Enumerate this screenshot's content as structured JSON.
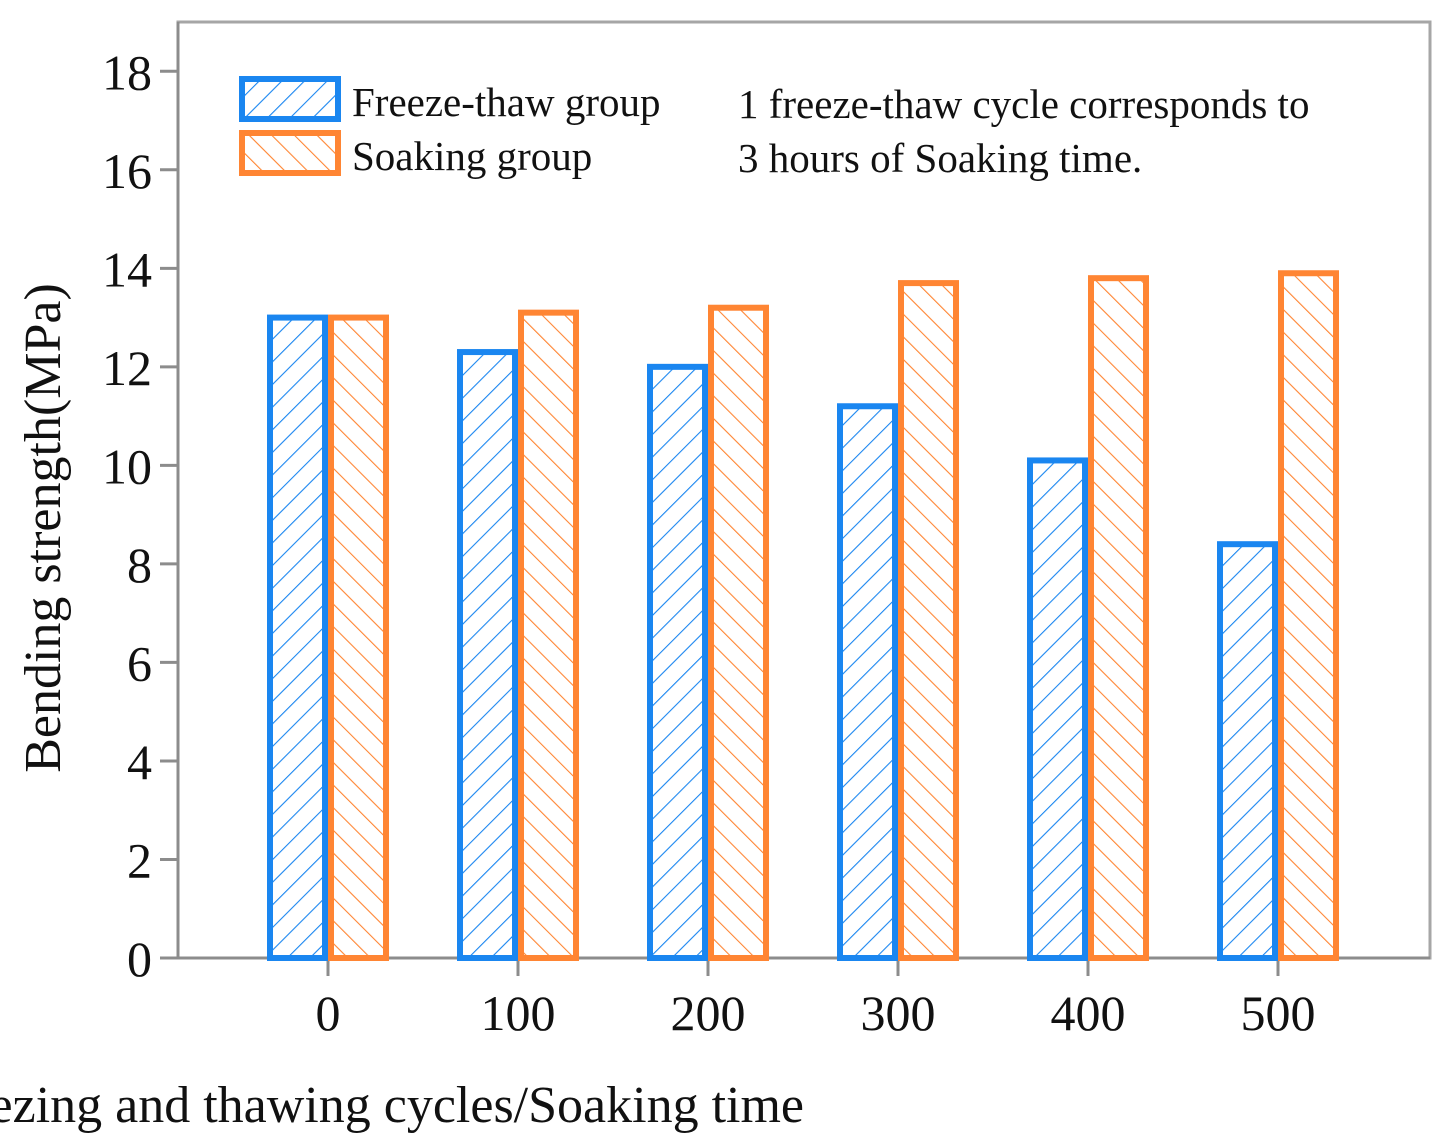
{
  "chart_data": {
    "type": "bar",
    "title": "",
    "xlabel": "Numbers of freezing and thawing cycles/Soaking time",
    "ylabel": "Bending strength(MPa)",
    "ylim": [
      0,
      19
    ],
    "yticks": [
      0,
      2,
      4,
      6,
      8,
      10,
      12,
      14,
      16,
      18
    ],
    "categories": [
      "0",
      "100",
      "200",
      "300",
      "400",
      "500"
    ],
    "series": [
      {
        "name": "Freeze-thaw group",
        "color": "#1a86f0",
        "hatch": "forward",
        "values": [
          13.0,
          12.3,
          12.0,
          11.2,
          10.1,
          8.4
        ]
      },
      {
        "name": "Soaking group",
        "color": "#ff8533",
        "hatch": "backward",
        "values": [
          13.0,
          13.1,
          13.2,
          13.7,
          13.8,
          13.9
        ]
      }
    ],
    "grid": false,
    "legend_position": "top-left",
    "annotation": {
      "line1": "1 freeze-thaw cycle corresponds to",
      "line2": "3 hours of Soaking time."
    }
  }
}
